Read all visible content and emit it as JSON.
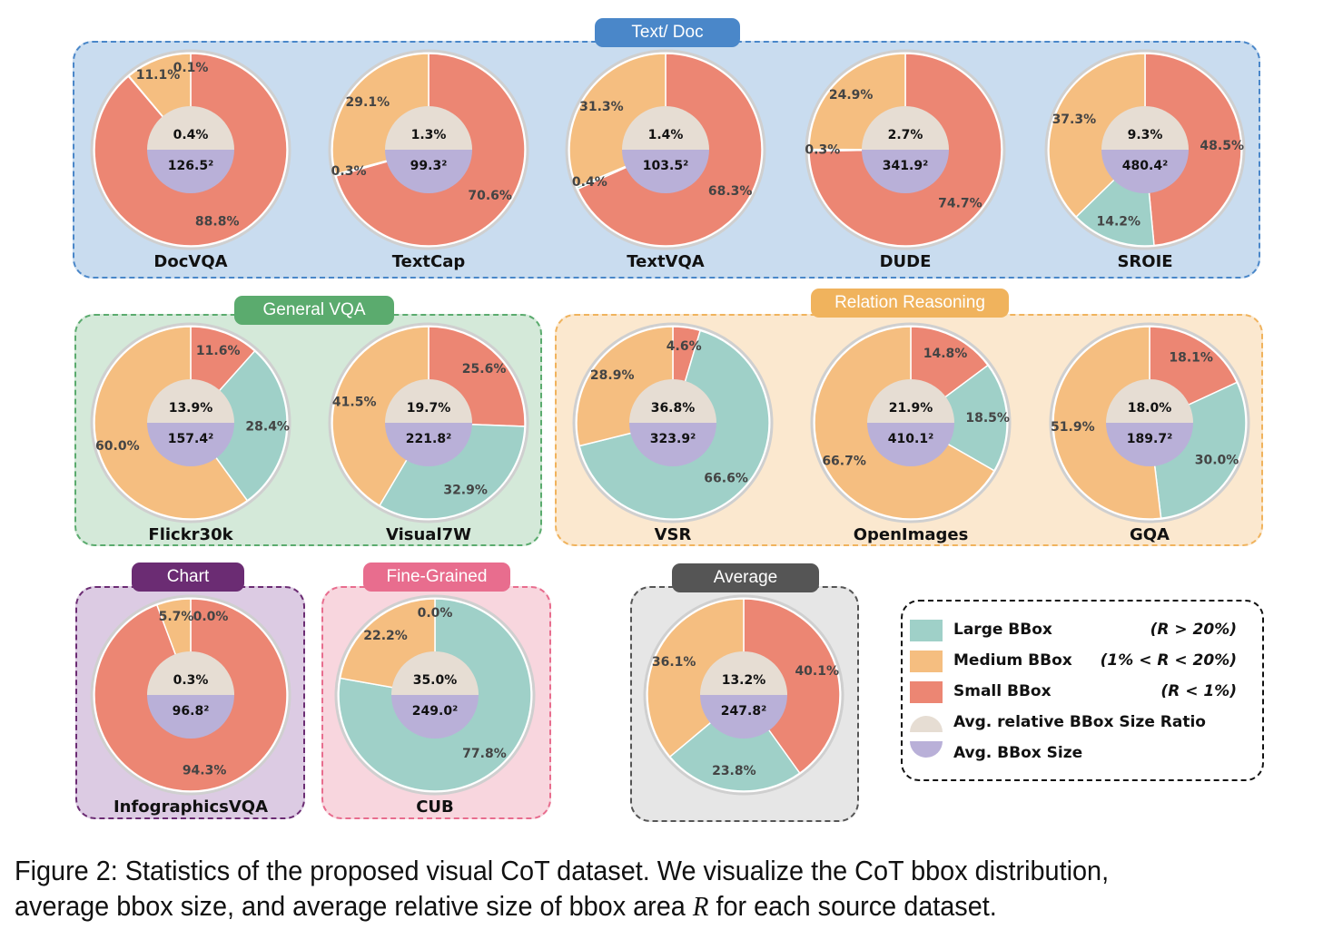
{
  "chart_data": {
    "type": "pie",
    "groups": [
      {
        "name": "Text/ Doc",
        "color": "#4a87c9",
        "fill": "#c9dcef"
      },
      {
        "name": "General VQA",
        "color": "#5bab6e",
        "fill": "#d4e9d9"
      },
      {
        "name": "Relation Reasoning",
        "color": "#f0b35d",
        "fill": "#fbe8cf"
      },
      {
        "name": "Chart",
        "color": "#6b2c73",
        "fill": "#dccbe3"
      },
      {
        "name": "Fine-Grained",
        "color": "#e86d8e",
        "fill": "#f8d6de"
      },
      {
        "name": "Average",
        "color": "#555555",
        "fill": "#e6e6e6"
      }
    ],
    "slice_colors": {
      "large": "#9fd0c8",
      "medium": "#f5be80",
      "small": "#ec8673"
    },
    "inner_colors": {
      "ratio": "#e6ddd3",
      "size": "#b9b0d8"
    },
    "datasets": [
      {
        "name": "DocVQA",
        "group": "Text/ Doc",
        "large": "",
        "medium": "11.1%",
        "small": "88.8%",
        "tiny": "0.1%",
        "large_value": 0.1,
        "medium_value": 11.1,
        "small_value": 88.8,
        "avg_ratio": "0.4%",
        "avg_size": "126.5²"
      },
      {
        "name": "TextCap",
        "group": "Text/ Doc",
        "large": "0.3%",
        "medium": "29.1%",
        "small": "70.6%",
        "large_value": 0.3,
        "medium_value": 29.1,
        "small_value": 70.6,
        "avg_ratio": "1.3%",
        "avg_size": "99.3²"
      },
      {
        "name": "TextVQA",
        "group": "Text/ Doc",
        "large": "0.4%",
        "medium": "31.3%",
        "small": "68.3%",
        "large_value": 0.4,
        "medium_value": 31.3,
        "small_value": 68.3,
        "avg_ratio": "1.4%",
        "avg_size": "103.5²"
      },
      {
        "name": "DUDE",
        "group": "Text/ Doc",
        "large": "0.3%",
        "medium": "24.9%",
        "small": "74.7%",
        "large_value": 0.3,
        "medium_value": 24.9,
        "small_value": 74.7,
        "avg_ratio": "2.7%",
        "avg_size": "341.9²"
      },
      {
        "name": "SROIE",
        "group": "Text/ Doc",
        "large": "14.2%",
        "medium": "37.3%",
        "small": "48.5%",
        "large_value": 14.2,
        "medium_value": 37.3,
        "small_value": 48.5,
        "avg_ratio": "9.3%",
        "avg_size": "480.4²"
      },
      {
        "name": "Flickr30k",
        "group": "General VQA",
        "large": "28.4%",
        "medium": "60.0%",
        "small": "11.6%",
        "large_value": 28.4,
        "medium_value": 60.0,
        "small_value": 11.6,
        "avg_ratio": "13.9%",
        "avg_size": "157.4²"
      },
      {
        "name": "Visual7W",
        "group": "General VQA",
        "large": "32.9%",
        "medium": "41.5%",
        "small": "25.6%",
        "large_value": 32.9,
        "medium_value": 41.5,
        "small_value": 25.6,
        "avg_ratio": "19.7%",
        "avg_size": "221.8²"
      },
      {
        "name": "VSR",
        "group": "Relation Reasoning",
        "large": "66.6%",
        "medium": "28.9%",
        "small": "4.6%",
        "large_value": 66.6,
        "medium_value": 28.9,
        "small_value": 4.6,
        "avg_ratio": "36.8%",
        "avg_size": "323.9²"
      },
      {
        "name": "OpenImages",
        "group": "Relation Reasoning",
        "large": "18.5%",
        "medium": "66.7%",
        "small": "14.8%",
        "large_value": 18.5,
        "medium_value": 66.7,
        "small_value": 14.8,
        "avg_ratio": "21.9%",
        "avg_size": "410.1²"
      },
      {
        "name": "GQA",
        "group": "Relation Reasoning",
        "large": "30.0%",
        "medium": "51.9%",
        "small": "18.1%",
        "large_value": 30.0,
        "medium_value": 51.9,
        "small_value": 18.1,
        "avg_ratio": "18.0%",
        "avg_size": "189.7²"
      },
      {
        "name": "InfographicsVQA",
        "group": "Chart",
        "large": "0.0%",
        "medium": "5.7%",
        "small": "94.3%",
        "large_value": 0.0,
        "medium_value": 5.7,
        "small_value": 94.3,
        "avg_ratio": "0.3%",
        "avg_size": "96.8²"
      },
      {
        "name": "CUB",
        "group": "Fine-Grained",
        "large": "77.8%",
        "medium": "22.2%",
        "small": "0.0%",
        "large_value": 77.8,
        "medium_value": 22.2,
        "small_value": 0.0,
        "avg_ratio": "35.0%",
        "avg_size": "249.0²"
      },
      {
        "name": "",
        "group": "Average",
        "large": "23.8%",
        "medium": "36.1%",
        "small": "40.1%",
        "large_value": 23.8,
        "medium_value": 36.1,
        "small_value": 40.1,
        "avg_ratio": "13.2%",
        "avg_size": "247.8²"
      }
    ],
    "legend": [
      {
        "key": "large",
        "name": "Large BBox",
        "range": "(R > 20%)"
      },
      {
        "key": "medium",
        "name": "Medium BBox",
        "range": "(1% < R < 20%)"
      },
      {
        "key": "small",
        "name": "Small BBox",
        "range": "(R < 1%)"
      },
      {
        "key": "ratio",
        "name": "Avg. relative BBox Size Ratio",
        "range": ""
      },
      {
        "key": "size",
        "name": "Avg. BBox Size",
        "range": ""
      }
    ]
  },
  "caption": {
    "line1": "Figure 2:   Statistics of the proposed visual CoT dataset.  We visualize the CoT bbox distribution,",
    "line2_pre": "average bbox size, and average relative size of bbox area ",
    "line2_var": "R",
    "line2_post": " for each source dataset."
  }
}
